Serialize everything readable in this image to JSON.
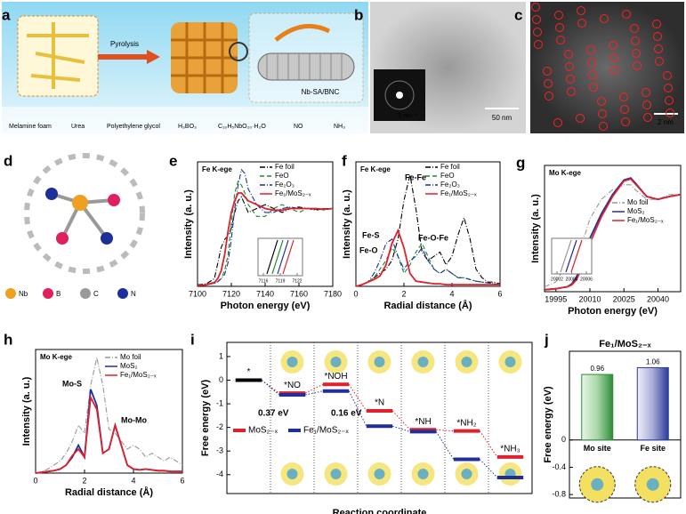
{
  "figure": {
    "panel_labels": [
      "a",
      "b",
      "c",
      "d"
    ],
    "a": {
      "arrow_label": "Pyrolysis",
      "product": "Nb-SA/BNC",
      "legend": [
        "Melamine foam",
        "Urea",
        "Polyethylene glycol",
        "H₃BO₃",
        "C₁₀H₅NbO₂₀·H₂O",
        "NO",
        "NH₃"
      ]
    },
    "b": {
      "inset_scale": "5 nm⁻¹",
      "scale": "50 nm"
    },
    "c": {
      "scale": "2 nm"
    },
    "d": {
      "legend": [
        "Nb",
        "B",
        "C",
        "N"
      ]
    }
  },
  "chart_data": [
    {
      "panel": "e",
      "type": "line",
      "title": "Fe K-ege",
      "xlabel": "Photon energy (eV)",
      "ylabel": "Intensity (a. u.)",
      "x": [
        7100,
        7105,
        7110,
        7112,
        7114,
        7116,
        7118,
        7120,
        7122,
        7124,
        7126,
        7128,
        7130,
        7135,
        7140,
        7145,
        7150,
        7155,
        7160,
        7165,
        7170,
        7175,
        7180
      ],
      "xlim": [
        7100,
        7180
      ],
      "xticks": [
        7100,
        7120,
        7140,
        7160,
        7180
      ],
      "ylim": [
        0,
        1.6
      ],
      "inset_xticks": [
        7116,
        7119,
        7122
      ],
      "series": [
        {
          "name": "Fe foil",
          "color": "#000000",
          "dash": "dashdot",
          "values": [
            0.02,
            0.03,
            0.1,
            0.3,
            0.5,
            0.6,
            0.65,
            0.75,
            0.95,
            1.1,
            1.15,
            1.05,
            0.95,
            1.0,
            1.05,
            1.0,
            0.95,
            1.0,
            1.02,
            1.0,
            0.98,
            1.0,
            1.0
          ]
        },
        {
          "name": "FeO",
          "color": "#1a8a2a",
          "dash": "dash",
          "values": [
            0.01,
            0.02,
            0.04,
            0.06,
            0.1,
            0.2,
            0.4,
            0.8,
            1.2,
            1.35,
            1.3,
            1.2,
            1.05,
            0.9,
            0.9,
            1.0,
            1.05,
            1.0,
            0.95,
            1.0,
            1.0,
            0.98,
            1.0
          ]
        },
        {
          "name": "Fe₂O₃",
          "color": "#1f2f9a",
          "dash": "dashdot",
          "values": [
            0.01,
            0.02,
            0.04,
            0.06,
            0.1,
            0.15,
            0.3,
            0.6,
            1.0,
            1.3,
            1.5,
            1.45,
            1.25,
            1.05,
            0.95,
            0.95,
            1.0,
            1.02,
            1.0,
            1.0,
            0.99,
            1.0,
            1.0
          ]
        },
        {
          "name": "Fe₁/MoS₂₋ₓ",
          "color": "#e0202a",
          "dash": "solid",
          "values": [
            0.01,
            0.02,
            0.05,
            0.1,
            0.2,
            0.4,
            0.7,
            0.95,
            1.1,
            1.2,
            1.2,
            1.15,
            1.1,
            1.05,
            1.0,
            0.98,
            0.98,
            1.0,
            1.0,
            1.0,
            1.0,
            0.99,
            1.0
          ]
        }
      ]
    },
    {
      "panel": "f",
      "type": "line",
      "title": "Fe K-ege",
      "xlabel": "Radial distance (Å)",
      "ylabel": "Intensity (a. u.)",
      "x": [
        0,
        0.25,
        0.5,
        0.75,
        1,
        1.25,
        1.5,
        1.75,
        2,
        2.25,
        2.5,
        2.75,
        3,
        3.25,
        3.5,
        3.75,
        4,
        4.25,
        4.5,
        4.75,
        5,
        5.25,
        5.5,
        5.75,
        6
      ],
      "xlim": [
        0,
        6
      ],
      "xticks": [
        0,
        2,
        4,
        6
      ],
      "ylim": [
        0,
        1.45
      ],
      "annotations": [
        {
          "text": "Fe-Fe",
          "color": "#000000"
        },
        {
          "text": "Fe-S",
          "color": "#e0202a"
        },
        {
          "text": "Fe-O",
          "color": "#1f2f9a"
        },
        {
          "text": "Fe-O-Fe",
          "color": "#1a8a2a"
        }
      ],
      "series": [
        {
          "name": "Fe foil",
          "color": "#000000",
          "dash": "dashdot",
          "values": [
            0,
            0.02,
            0.05,
            0.1,
            0.15,
            0.2,
            0.3,
            0.55,
            1.0,
            1.3,
            0.9,
            0.4,
            0.3,
            0.35,
            0.4,
            0.25,
            0.35,
            0.6,
            0.8,
            0.55,
            0.2,
            0.1,
            0.05,
            0.05,
            0.03
          ]
        },
        {
          "name": "FeO",
          "color": "#1a8a2a",
          "dash": "dash",
          "values": [
            0,
            0.02,
            0.05,
            0.1,
            0.2,
            0.3,
            0.45,
            0.35,
            0.15,
            0.25,
            0.4,
            0.5,
            0.35,
            0.2,
            0.15,
            0.2,
            0.15,
            0.1,
            0.1,
            0.08,
            0.06,
            0.05,
            0.04,
            0.03,
            0.02
          ]
        },
        {
          "name": "Fe₂O₃",
          "color": "#1f2f9a",
          "dash": "dashdot",
          "values": [
            0,
            0.02,
            0.05,
            0.15,
            0.3,
            0.5,
            0.55,
            0.35,
            0.2,
            0.3,
            0.35,
            0.45,
            0.3,
            0.2,
            0.15,
            0.2,
            0.15,
            0.1,
            0.1,
            0.08,
            0.06,
            0.05,
            0.04,
            0.03,
            0.02
          ]
        },
        {
          "name": "Fe₁/MoS₂₋ₓ",
          "color": "#e0202a",
          "dash": "solid",
          "values": [
            0,
            0.02,
            0.05,
            0.08,
            0.12,
            0.25,
            0.5,
            0.65,
            0.45,
            0.15,
            0.06,
            0.05,
            0.04,
            0.03,
            0.03,
            0.02,
            0.02,
            0.02,
            0.02,
            0.02,
            0.02,
            0.02,
            0.02,
            0.02,
            0.02
          ]
        }
      ]
    },
    {
      "panel": "g",
      "type": "line",
      "title": "Mo K-ege",
      "xlabel": "Photon energy (eV)",
      "ylabel": "Intensity (a. u.)",
      "x": [
        19990,
        19995,
        20000,
        20002,
        20004,
        20006,
        20008,
        20010,
        20015,
        20020,
        20025,
        20028,
        20030,
        20035,
        20040,
        20045,
        20050
      ],
      "xlim": [
        19990,
        20050
      ],
      "xticks": [
        19995,
        20010,
        20025,
        20040
      ],
      "ylim": [
        0,
        1.3
      ],
      "inset_xticks": [
        20002,
        20004,
        20006
      ],
      "series": [
        {
          "name": "Mo foil",
          "color": "#999999",
          "dash": "dashdot",
          "values": [
            0.05,
            0.1,
            0.3,
            0.4,
            0.45,
            0.5,
            0.6,
            0.75,
            0.95,
            1.05,
            1.1,
            1.1,
            1.05,
            0.95,
            0.95,
            1.0,
            1.0
          ]
        },
        {
          "name": "MoS₂",
          "color": "#1f2f9a",
          "dash": "solid",
          "values": [
            0.02,
            0.03,
            0.05,
            0.08,
            0.15,
            0.25,
            0.4,
            0.55,
            0.8,
            1.0,
            1.15,
            1.17,
            1.12,
            0.98,
            0.95,
            0.98,
            1.0
          ]
        },
        {
          "name": "Fe₁/MoS₂₋ₓ",
          "color": "#e0202a",
          "dash": "solid",
          "values": [
            0.02,
            0.03,
            0.05,
            0.07,
            0.12,
            0.22,
            0.36,
            0.5,
            0.77,
            0.98,
            1.14,
            1.16,
            1.11,
            0.98,
            0.95,
            0.98,
            1.0
          ]
        }
      ]
    },
    {
      "panel": "h",
      "type": "line",
      "title": "Mo K-ege",
      "xlabel": "Radial distance (Å)",
      "ylabel": "Intensity (a. u.)",
      "x": [
        0,
        0.25,
        0.5,
        0.75,
        1,
        1.25,
        1.5,
        1.75,
        2,
        2.25,
        2.5,
        2.75,
        3,
        3.25,
        3.5,
        3.75,
        4,
        4.25,
        4.5,
        4.75,
        5,
        5.25,
        5.5,
        5.75,
        6
      ],
      "xlim": [
        0,
        6
      ],
      "xticks": [
        0,
        2,
        4,
        6
      ],
      "ylim": [
        0,
        1.55
      ],
      "annotations": [
        {
          "text": "Mo-S",
          "color": "#e0202a"
        },
        {
          "text": "Mo-Mo",
          "color": "#e0202a"
        }
      ],
      "series": [
        {
          "name": "Mo foil",
          "color": "#999999",
          "dash": "dashdot",
          "values": [
            0,
            0.02,
            0.05,
            0.1,
            0.15,
            0.25,
            0.4,
            0.6,
            0.5,
            1.1,
            1.45,
            1.1,
            0.55,
            0.5,
            0.4,
            0.3,
            0.35,
            0.3,
            0.2,
            0.25,
            0.2,
            0.15,
            0.2,
            0.15,
            0.1
          ]
        },
        {
          "name": "MoS₂",
          "color": "#1f2f9a",
          "dash": "solid",
          "values": [
            0,
            0.01,
            0.02,
            0.03,
            0.05,
            0.1,
            0.2,
            0.35,
            0.2,
            1.05,
            0.85,
            0.25,
            0.3,
            0.6,
            0.35,
            0.1,
            0.05,
            0.04,
            0.05,
            0.04,
            0.03,
            0.03,
            0.02,
            0.02,
            0.02
          ]
        },
        {
          "name": "Fe₁/MoS₂₋ₓ",
          "color": "#e0202a",
          "dash": "solid",
          "values": [
            0,
            0.01,
            0.02,
            0.03,
            0.05,
            0.1,
            0.22,
            0.3,
            0.2,
            0.95,
            0.8,
            0.25,
            0.3,
            0.6,
            0.35,
            0.1,
            0.05,
            0.04,
            0.05,
            0.04,
            0.03,
            0.03,
            0.02,
            0.02,
            0.02
          ]
        }
      ]
    },
    {
      "panel": "i",
      "type": "energy",
      "xlabel": "Reaction coordinate",
      "ylabel": "Free energy (eV)",
      "categories": [
        "*",
        "*NO",
        "*NOH",
        "*N",
        "*NH",
        "*NH₂",
        "*NH₃"
      ],
      "ylim": [
        -4.8,
        1.6
      ],
      "yticks": [
        1,
        0,
        -1,
        -2,
        -3,
        -4
      ],
      "annotations": [
        {
          "text": "0.37 eV",
          "color": "#e0202a"
        },
        {
          "text": "0.16 eV",
          "color": "#1f2f9a"
        }
      ],
      "series": [
        {
          "name": "MoS₂₋ₓ",
          "color": "#e0202a",
          "values": [
            0,
            -0.55,
            -0.18,
            -1.3,
            -2.1,
            -2.15,
            -3.25
          ]
        },
        {
          "name": "Fe₁/MoS₂₋ₓ",
          "color": "#1f2f9a",
          "values": [
            0,
            -0.62,
            -0.46,
            -1.95,
            -2.18,
            -3.35,
            -4.12
          ]
        }
      ]
    },
    {
      "panel": "j",
      "type": "bar",
      "title": "Fe₁/MoS₂₋ₓ",
      "ylabel": "Free energy (eV)",
      "categories": [
        "Mo site",
        "Fe site"
      ],
      "values": [
        0.96,
        1.06
      ],
      "colors": [
        "#2e8b3a",
        "#2a3a9a"
      ],
      "ylim": [
        -0.85,
        1.3
      ],
      "yticks": [
        0,
        -0.4,
        -0.8
      ]
    }
  ]
}
